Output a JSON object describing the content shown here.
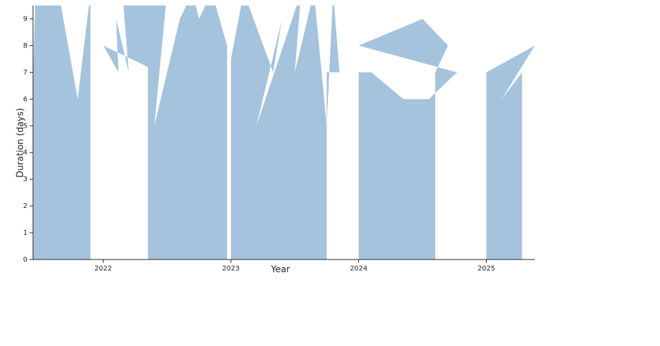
{
  "chart_data": {
    "type": "area",
    "x_label": "Year",
    "y_label": "Duration (days)",
    "color": "#a6c3dd",
    "x": [
      2021.45,
      2021.47,
      2021.65,
      2021.8,
      2021.9,
      null,
      2022.35,
      2022.0,
      2022.12,
      2022.1,
      2022.2,
      2022.15,
      2022.5,
      2022.4,
      2022.6,
      2022.7,
      2022.75,
      2022.85,
      2022.97,
      null,
      2023.0,
      2023.1,
      2023.33,
      2023.4,
      2023.2,
      2023.55,
      2023.5,
      2023.65,
      2023.75,
      2023.8,
      2023.85,
      2023.75,
      null,
      2024.0,
      2024.1,
      2024.35,
      2024.55,
      2024.77,
      2024.0,
      2024.5,
      2024.7,
      2024.6,
      null,
      2025.0,
      2025.38,
      2025.12,
      2025.28
    ],
    "values": [
      7,
      10,
      10,
      6,
      10,
      null,
      7.2,
      8,
      7,
      9,
      7,
      10,
      10,
      5,
      9,
      10,
      9,
      10,
      8,
      null,
      7.5,
      10,
      7,
      9,
      5,
      10,
      7,
      10,
      5,
      10,
      7,
      7,
      null,
      7,
      7,
      6,
      6,
      7,
      8,
      9,
      8,
      7,
      null,
      7,
      8,
      6,
      7
    ],
    "xlim": [
      2021.45,
      2025.38
    ],
    "ylim": [
      0,
      9.5
    ],
    "xticks": [
      2022,
      2023,
      2024,
      2025
    ],
    "yticks": [
      0,
      1,
      2,
      3,
      4,
      5,
      6,
      7,
      8,
      9
    ]
  }
}
